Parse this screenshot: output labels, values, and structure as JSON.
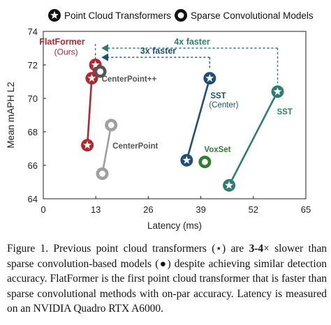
{
  "chart_data": {
    "type": "scatter",
    "xlabel": "Latency (ms)",
    "ylabel": "Mean mAPH L2",
    "xlim": [
      0,
      65
    ],
    "ylim": [
      64,
      74
    ],
    "xticks": [
      "0",
      "13",
      "26",
      "39",
      "52",
      "65"
    ],
    "yticks": [
      "64",
      "66",
      "68",
      "70",
      "72",
      "74"
    ],
    "grid": false,
    "legend": {
      "placement": "top",
      "entries": [
        {
          "label": "Point Cloud Transformers",
          "marker": "star"
        },
        {
          "label": "Sparse Convolutional Models",
          "marker": "circle"
        }
      ]
    },
    "series": [
      {
        "name": "FlatFormer",
        "sublabel": "(Ours)",
        "kind": "transformer",
        "color": "#b2282e",
        "points": [
          [
            10.9,
            67.2
          ],
          [
            12.0,
            71.2
          ],
          [
            12.9,
            72.0
          ]
        ]
      },
      {
        "name": "CenterPoint++",
        "kind": "sparse-conv",
        "color": "#555555",
        "points": [
          [
            14.1,
            71.6
          ]
        ]
      },
      {
        "name": "CenterPoint",
        "kind": "sparse-conv",
        "color": "#a0a0a0",
        "points": [
          [
            14.6,
            65.5
          ],
          [
            16.8,
            68.4
          ]
        ]
      },
      {
        "name": "SST",
        "sublabel": "(Center)",
        "kind": "transformer",
        "color": "#1f4e79",
        "points": [
          [
            35.5,
            66.3
          ],
          [
            41.2,
            71.2
          ]
        ]
      },
      {
        "name": "VoxSet",
        "kind": "sparse-conv",
        "color": "#2e7d32",
        "points": [
          [
            40.0,
            66.2
          ]
        ]
      },
      {
        "name": "SST",
        "kind": "transformer",
        "color": "#2e7d72",
        "points": [
          [
            46.0,
            64.8
          ],
          [
            58.0,
            70.4
          ]
        ]
      }
    ],
    "annotations": [
      {
        "text": "4x faster",
        "color": "#2e7d72",
        "from_x": 58.0,
        "to_x": 12.9,
        "level_y": 73.0
      },
      {
        "text": "3x faster",
        "color": "#1f4e79",
        "from_x": 41.2,
        "to_x": 12.9,
        "level_y": 72.45
      }
    ]
  },
  "caption": {
    "p1": "Figure 1. Previous point cloud transformers (",
    "star": "⋆",
    "p2": ") are ",
    "bold": "3-4",
    "p3": "× slower than sparse convolution-based models (",
    "dot": "●",
    "p4": ") despite achieving similar detection accuracy. FlatFormer is the first point cloud transformer that is faster than sparse convolutional methods with on-par accuracy. Latency is measured on an NVIDIA Quadro RTX A6000."
  }
}
